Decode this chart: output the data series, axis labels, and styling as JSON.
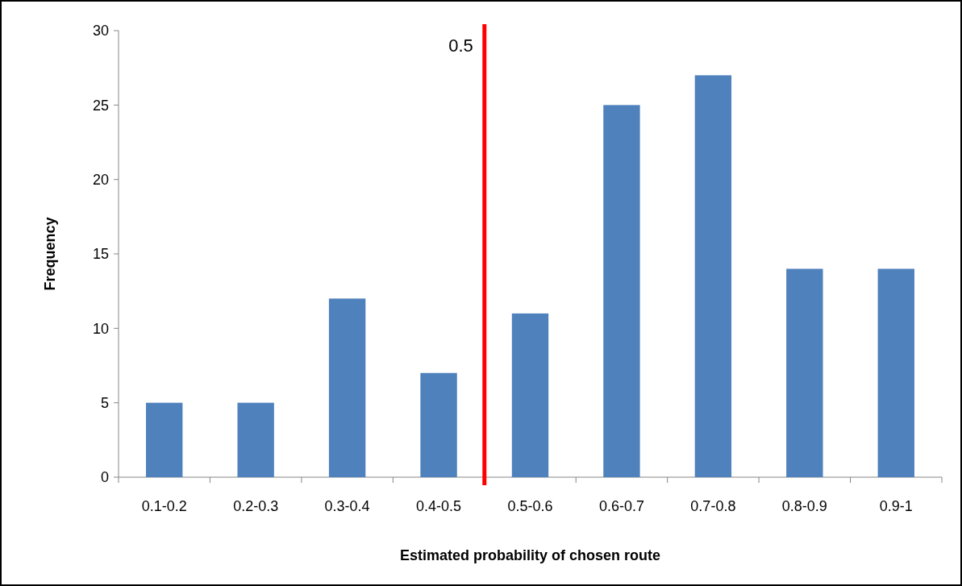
{
  "chart_data": {
    "type": "bar",
    "categories": [
      "0.1-0.2",
      "0.2-0.3",
      "0.3-0.4",
      "0.4-0.5",
      "0.5-0.6",
      "0.6-0.7",
      "0.7-0.8",
      "0.8-0.9",
      "0.9-1"
    ],
    "values": [
      5,
      5,
      12,
      7,
      11,
      25,
      27,
      14,
      14
    ],
    "color": "#4f81bd",
    "xlabel": "Estimated probability of chosen route",
    "ylabel": "Frequency",
    "ylim": [
      0,
      30
    ],
    "yticks": [
      0,
      5,
      10,
      15,
      20,
      25,
      30
    ],
    "grid": false,
    "ref_lines": [
      {
        "axis": "x",
        "value": "0.4-0.5",
        "label": "0.5",
        "color": "#ff0000"
      }
    ]
  }
}
